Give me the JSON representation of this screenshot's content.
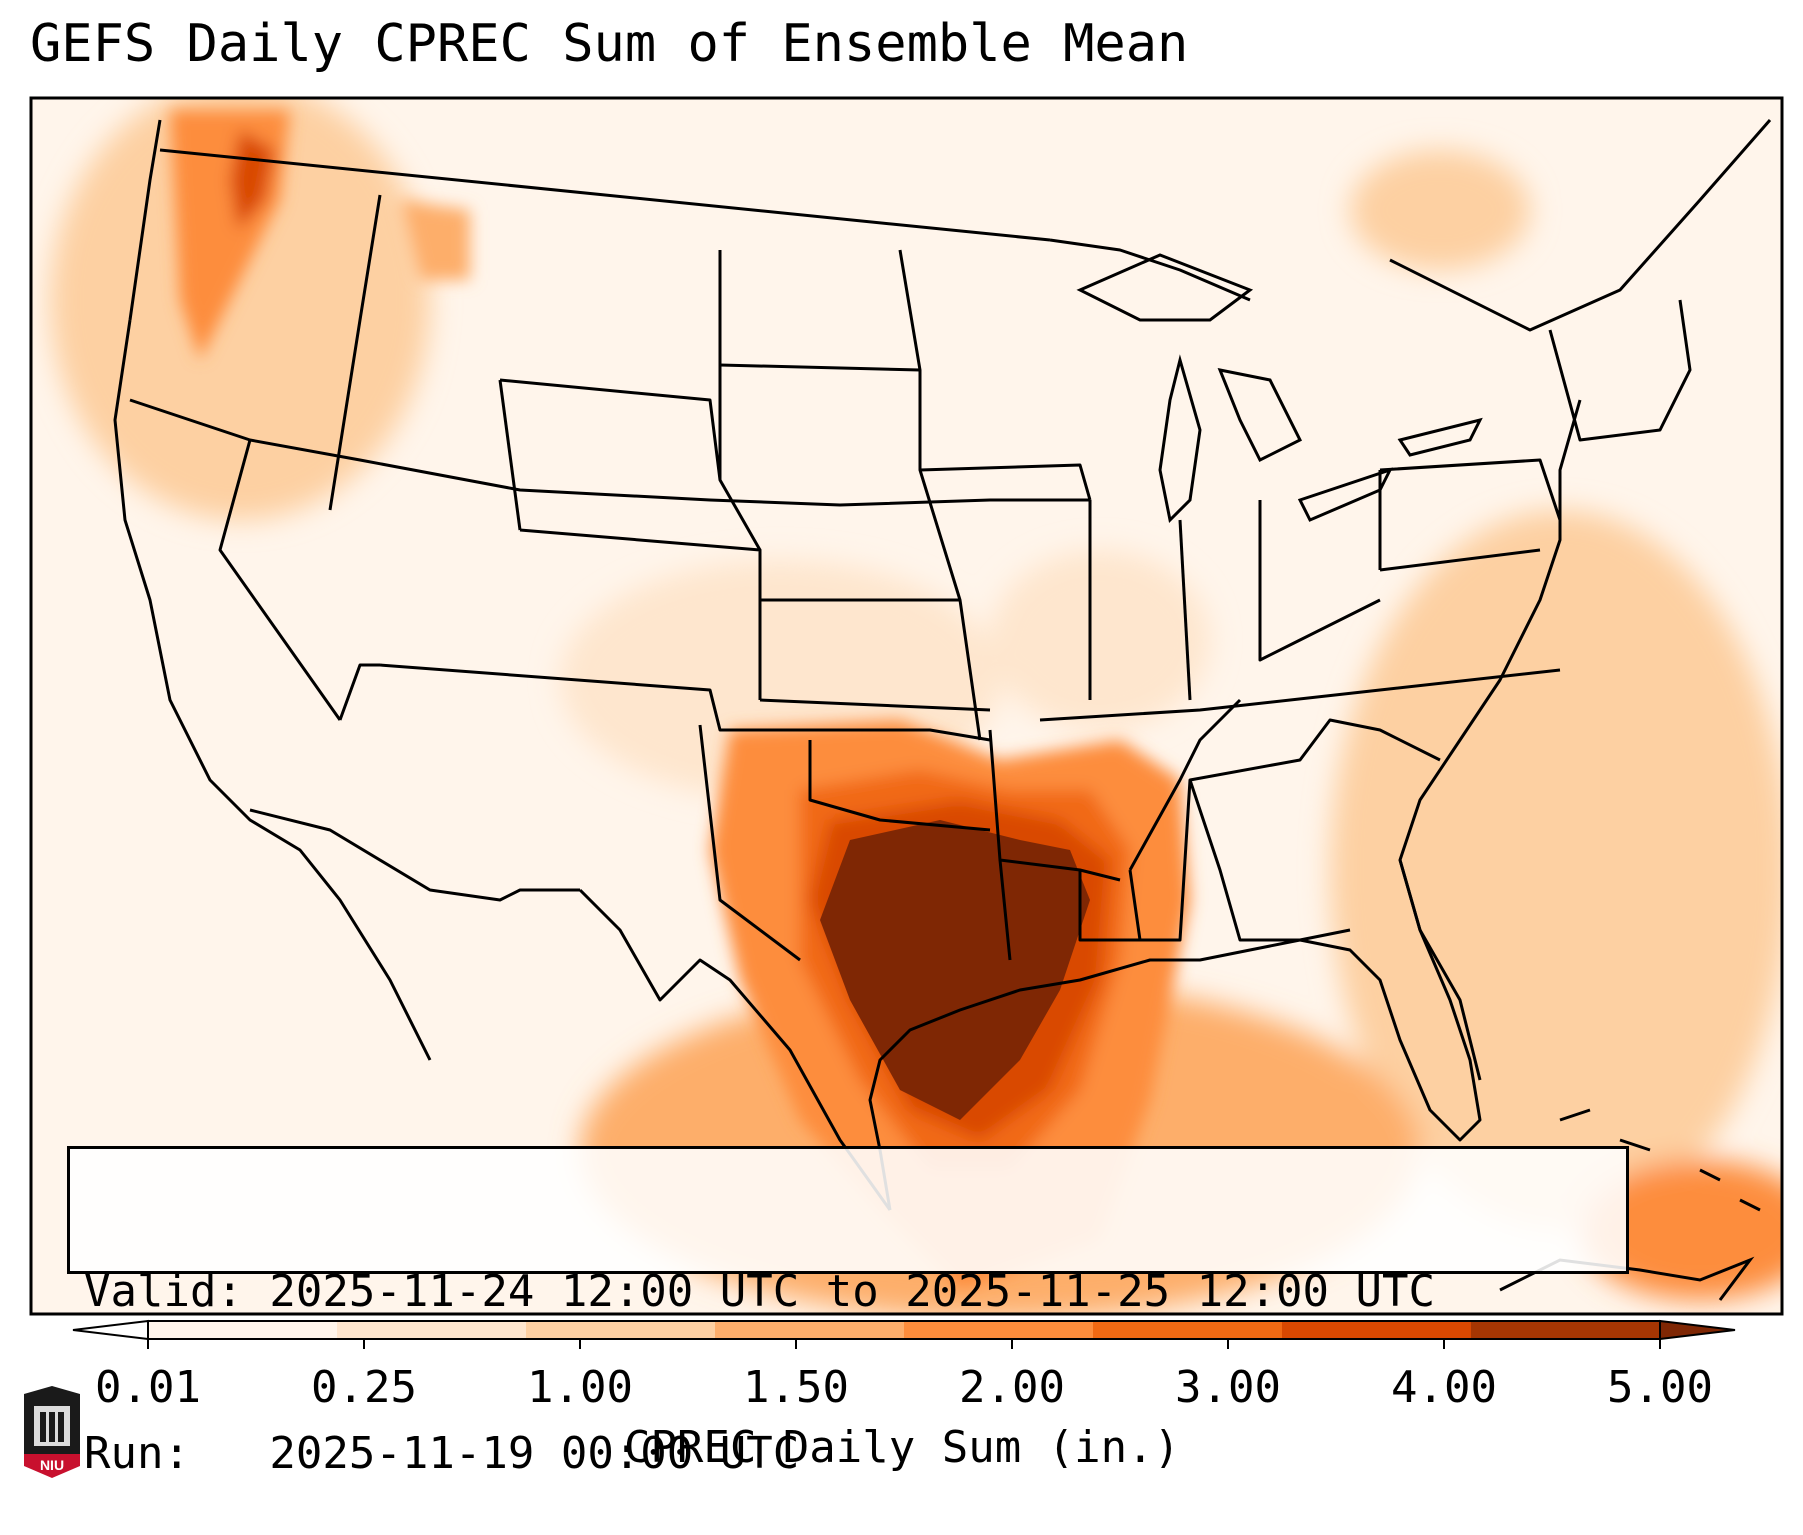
{
  "title": "GEFS Daily CPREC Sum of Ensemble Mean",
  "info": {
    "valid": "Valid: 2025-11-24 12:00 UTC to 2025-11-25 12:00 UTC",
    "run": "Run:   2025-11-19 00:00 UTC"
  },
  "colorbar": {
    "label": "CPREC Daily Sum (in.)",
    "ticks": [
      "0.01",
      "0.25",
      "1.00",
      "1.50",
      "2.00",
      "3.00",
      "4.00",
      "5.00"
    ],
    "colors": [
      "#ffffff",
      "#fff5eb",
      "#fee6ce",
      "#fdd0a2",
      "#fdae6b",
      "#fd8d3c",
      "#f16913",
      "#d94801",
      "#a63603",
      "#7f2704"
    ]
  },
  "logo": {
    "text": "NIU"
  }
}
